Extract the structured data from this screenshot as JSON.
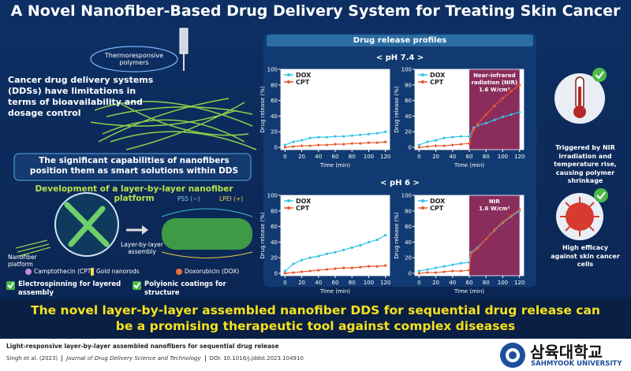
{
  "title": "A Novel Nanofiber-Based Drug Delivery System for Treating Skin Cancer",
  "left": {
    "thermo_label": "Thermoresponsive polymers",
    "limitations": "Cancer drug delivery systems (DDSs) have limitations in terms of bioavailability and dosage control",
    "capabilities": "The significant capabilities of nanofibers position them as smart solutions within DDS",
    "platform_heading": "Development of a layer-by-layer nanofiber platform",
    "pss": "PSS (−)",
    "lpei": "LPEI (+)",
    "lbl_assembly": "Layer-by-layer assembly",
    "nanofiber_platform": "Nanofiber platform",
    "legend": [
      "Camptothecin (CPT)",
      "Gold nanorods",
      "Doxorubicin (DOX)"
    ],
    "features": [
      "Electrospinning for layered assembly",
      "Polyionic coatings for structure"
    ]
  },
  "middle": {
    "heading": "Drug release profiles",
    "conditions": [
      "< pH 7.4 >",
      "< pH 6 >"
    ]
  },
  "right": {
    "nir_effect": "Triggered by NIR irradiation and temperature rise, causing polymer shrinkage",
    "efficacy": "High efficacy against skin cancer cells"
  },
  "conclusion": "The novel layer-by-layer assembled nanofiber DDS for sequential drug release can be a promising therapeutic tool against complex diseases",
  "footer": {
    "paper_title": "Light-responsive layer-by-layer assembled nanofibers for sequential drug release",
    "authors": "Singh et al. (2023)",
    "journal": "Journal of Drug Delivery Science and Technology",
    "doi": "DOI: 10.1016/j.jddst.2023.104910",
    "university_kr": "삼육대학교",
    "university_en": "SAHMYOOK UNIVERSITY"
  },
  "chart_data": [
    {
      "type": "line",
      "xlabel": "Time (min)",
      "ylabel": "Drug release (%)",
      "x": [
        0,
        10,
        20,
        30,
        40,
        50,
        60,
        70,
        80,
        90,
        100,
        110,
        120
      ],
      "series": [
        {
          "name": "DOX",
          "color": "#33c3e6",
          "values": [
            3,
            7,
            9,
            12,
            13,
            13,
            14,
            14,
            15,
            16,
            17,
            18,
            20
          ]
        },
        {
          "name": "CPT",
          "color": "#e8562a",
          "values": [
            0,
            1,
            2,
            2,
            3,
            3,
            4,
            4,
            5,
            5,
            6,
            6,
            7
          ]
        }
      ],
      "xlim": [
        -5,
        125
      ],
      "ylim": [
        -3,
        100
      ],
      "xticks": [
        0,
        20,
        40,
        60,
        80,
        100,
        120
      ],
      "yticks": [
        0,
        20,
        40,
        60,
        80,
        100
      ]
    },
    {
      "type": "line",
      "xlabel": "Time (min)",
      "ylabel": "Drug release (%)",
      "x": [
        0,
        10,
        20,
        30,
        40,
        50,
        60,
        65,
        70,
        80,
        90,
        100,
        110,
        120
      ],
      "series": [
        {
          "name": "DOX",
          "color": "#33c3e6",
          "values": [
            3,
            7,
            9,
            12,
            13,
            14,
            14,
            25,
            28,
            31,
            35,
            39,
            42,
            45
          ]
        },
        {
          "name": "CPT",
          "color": "#e8562a",
          "values": [
            0,
            1,
            2,
            2,
            3,
            4,
            5,
            22,
            30,
            42,
            53,
            63,
            72,
            80
          ]
        }
      ],
      "highlight_range": [
        60,
        120
      ],
      "highlight_color": "#8a2d5c",
      "annotation": [
        "Near-infrared",
        "radiation (NIR)",
        "1.6 W/cm²"
      ],
      "xlim": [
        -5,
        125
      ],
      "ylim": [
        -3,
        100
      ],
      "xticks": [
        0,
        20,
        40,
        60,
        80,
        100,
        120
      ],
      "yticks": [
        0,
        20,
        40,
        60,
        80,
        100
      ]
    },
    {
      "type": "line",
      "xlabel": "Time (min)",
      "ylabel": "Drug release (%)",
      "x": [
        0,
        10,
        20,
        30,
        40,
        50,
        60,
        70,
        80,
        90,
        100,
        110,
        120
      ],
      "series": [
        {
          "name": "DOX",
          "color": "#33c3e6",
          "values": [
            3,
            12,
            17,
            20,
            22,
            25,
            27,
            30,
            33,
            36,
            40,
            43,
            49
          ]
        },
        {
          "name": "CPT",
          "color": "#e8562a",
          "values": [
            0,
            1,
            2,
            3,
            4,
            5,
            6,
            7,
            7,
            8,
            9,
            9,
            10
          ]
        }
      ],
      "xlim": [
        -5,
        125
      ],
      "ylim": [
        -3,
        100
      ],
      "xticks": [
        0,
        20,
        40,
        60,
        80,
        100,
        120
      ],
      "yticks": [
        0,
        20,
        40,
        60,
        80,
        100
      ]
    },
    {
      "type": "line",
      "xlabel": "Time (min)",
      "ylabel": "Drug release (%)",
      "x": [
        0,
        10,
        20,
        30,
        40,
        50,
        60,
        62,
        70,
        80,
        90,
        100,
        110,
        120
      ],
      "series": [
        {
          "name": "DOX",
          "color": "#33c3e6",
          "values": [
            3,
            5,
            7,
            9,
            11,
            13,
            14,
            27,
            33,
            44,
            55,
            65,
            73,
            80
          ]
        },
        {
          "name": "CPT",
          "color": "#e8562a",
          "values": [
            0,
            1,
            1,
            2,
            3,
            3,
            4,
            25,
            32,
            44,
            56,
            66,
            74,
            82
          ]
        }
      ],
      "highlight_range": [
        60,
        120
      ],
      "highlight_color": "#8a2d5c",
      "annotation": [
        "NIR",
        "1.6 W/cm²"
      ],
      "xlim": [
        -5,
        125
      ],
      "ylim": [
        -3,
        100
      ],
      "xticks": [
        0,
        20,
        40,
        60,
        80,
        100,
        120
      ],
      "yticks": [
        0,
        20,
        40,
        60,
        80,
        100
      ]
    }
  ]
}
